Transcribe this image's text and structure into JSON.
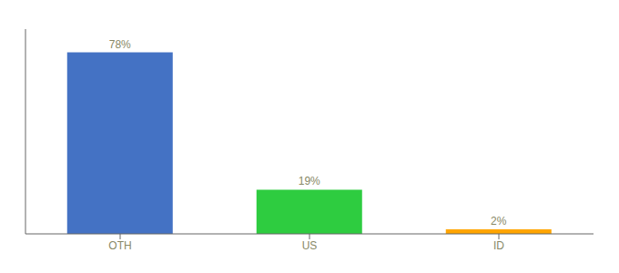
{
  "chart_data": {
    "type": "bar",
    "categories": [
      "OTH",
      "US",
      "ID"
    ],
    "values": [
      78,
      19,
      2
    ],
    "value_labels": [
      "78%",
      "19%",
      "2%"
    ],
    "colors": [
      "#4472C4",
      "#2ECC40",
      "#FFA500"
    ],
    "ylim": [
      0,
      88
    ],
    "data_labels": true,
    "tick_labels": "x",
    "grid": false
  }
}
